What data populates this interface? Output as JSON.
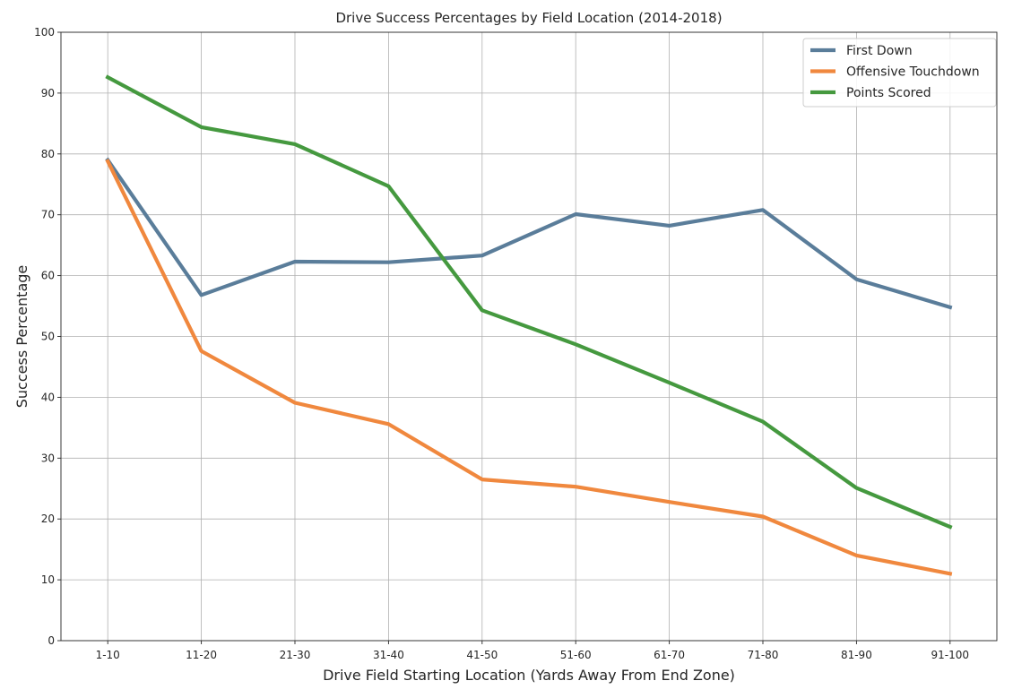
{
  "chart_data": {
    "type": "line",
    "title": "Drive Success Percentages by Field Location (2014-2018)",
    "xlabel": "Drive Field Starting Location (Yards Away From End Zone)",
    "ylabel": "Success Percentage",
    "categories": [
      "1-10",
      "11-20",
      "21-30",
      "31-40",
      "41-50",
      "51-60",
      "61-70",
      "71-80",
      "81-90",
      "91-100"
    ],
    "ylim": [
      0,
      100
    ],
    "yticks": [
      "0",
      "10",
      "20",
      "30",
      "40",
      "50",
      "60",
      "70",
      "80",
      "90",
      "100"
    ],
    "grid": true,
    "legend_position": "top-right",
    "series": [
      {
        "name": "First Down",
        "color": "#5a7d9a",
        "values": [
          79.0,
          56.8,
          62.3,
          62.2,
          63.3,
          70.1,
          68.2,
          70.8,
          59.4,
          54.8
        ]
      },
      {
        "name": "Offensive Touchdown",
        "color": "#f0883e",
        "values": [
          78.8,
          47.6,
          39.1,
          35.6,
          26.5,
          25.3,
          22.8,
          20.4,
          14.0,
          11.0
        ]
      },
      {
        "name": "Points Scored",
        "color": "#45993f",
        "values": [
          92.6,
          84.4,
          81.6,
          74.7,
          54.3,
          48.7,
          42.4,
          36.0,
          25.1,
          18.7
        ]
      }
    ]
  }
}
